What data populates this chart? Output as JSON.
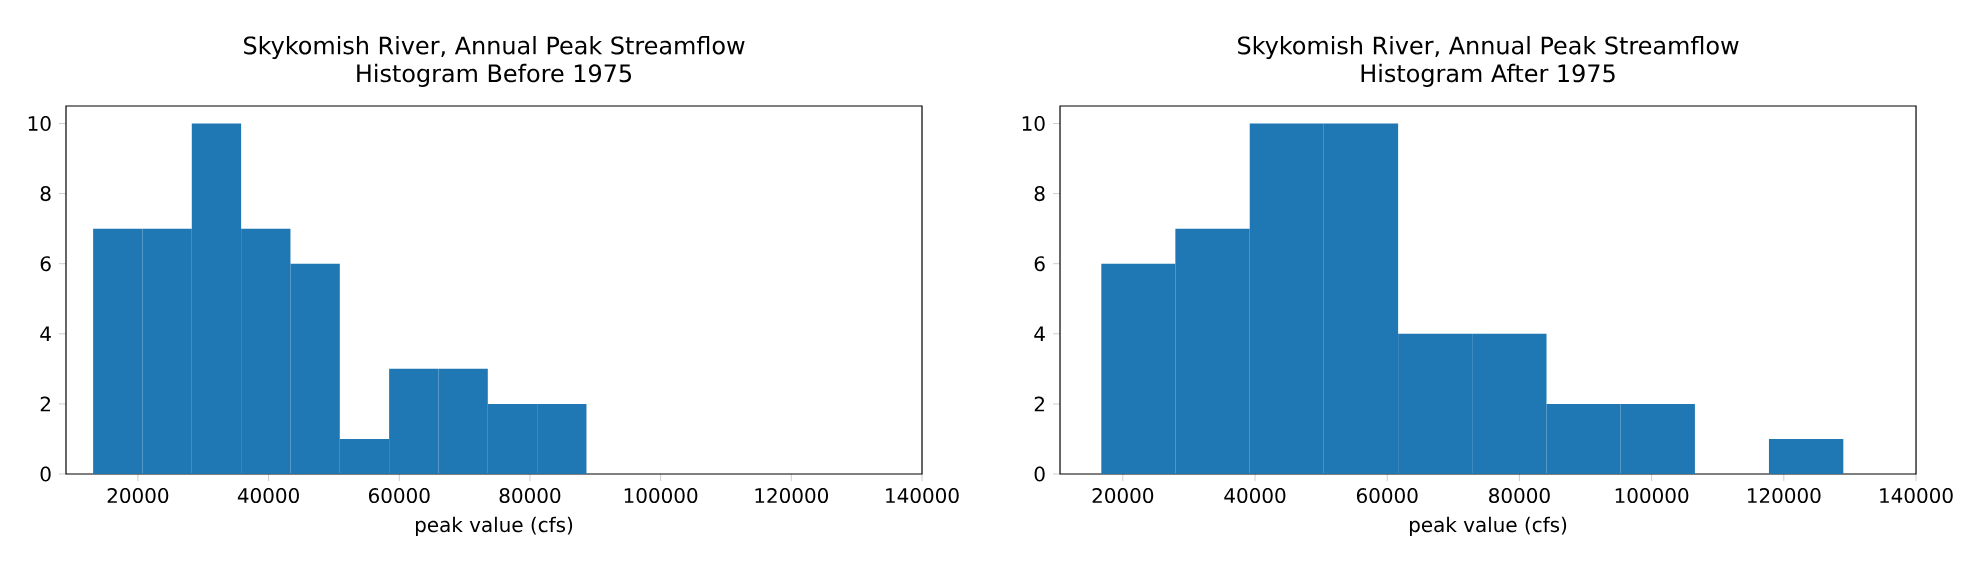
{
  "chart_data": [
    {
      "type": "histogram",
      "title": "Skykomish River, Annual Peak Streamflow",
      "subtitle": "Histogram Before 1975",
      "xlabel": "peak value (cfs)",
      "color": "#1f77b4",
      "bins": [
        13150,
        20700,
        28250,
        35800,
        43350,
        50900,
        58450,
        66000,
        73550,
        81100,
        88650
      ],
      "values": [
        7,
        7,
        10,
        7,
        6,
        1,
        3,
        3,
        2,
        2
      ],
      "xlim": [
        9000,
        140000
      ],
      "xticks": [
        20000,
        40000,
        60000,
        80000,
        100000,
        120000,
        140000
      ],
      "ylim": [
        0,
        10.5
      ],
      "yticks": [
        0,
        2,
        4,
        6,
        8,
        10
      ]
    },
    {
      "type": "histogram",
      "title": "Skykomish River, Annual Peak Streamflow",
      "subtitle": "Histogram After 1975",
      "xlabel": "peak value (cfs)",
      "color": "#1f77b4",
      "bins": [
        16750,
        27950,
        39200,
        50400,
        61650,
        72850,
        84100,
        95300,
        106550,
        117750,
        129000
      ],
      "values": [
        6,
        7,
        10,
        10,
        4,
        4,
        2,
        2,
        0,
        1
      ],
      "xlim": [
        10500,
        140000
      ],
      "xticks": [
        20000,
        40000,
        60000,
        80000,
        100000,
        120000,
        140000
      ],
      "ylim": [
        0,
        10.5
      ],
      "yticks": [
        0,
        2,
        4,
        6,
        8,
        10
      ]
    }
  ]
}
